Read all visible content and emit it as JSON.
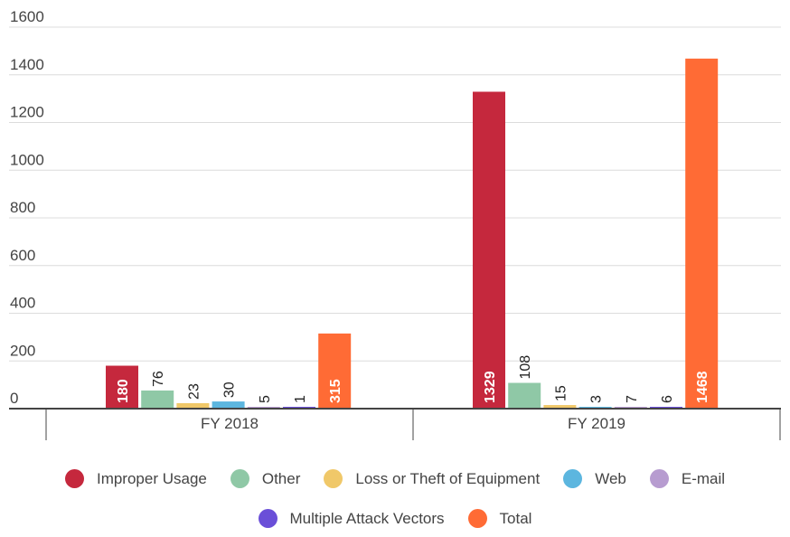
{
  "chart_data": {
    "type": "bar",
    "categories": [
      "FY 2018",
      "FY 2019"
    ],
    "series": [
      {
        "name": "Improper Usage",
        "color": "#c5283d",
        "values": [
          180,
          1329
        ]
      },
      {
        "name": "Other",
        "color": "#8fc8a6",
        "values": [
          76,
          108
        ]
      },
      {
        "name": "Loss or Theft of Equipment",
        "color": "#f0c869",
        "values": [
          23,
          15
        ]
      },
      {
        "name": "Web",
        "color": "#5cb6df",
        "values": [
          30,
          3
        ]
      },
      {
        "name": "E-mail",
        "color": "#b79cd0",
        "values": [
          5,
          7
        ]
      },
      {
        "name": "Multiple Attack Vectors",
        "color": "#6a4fd8",
        "values": [
          1,
          6
        ]
      },
      {
        "name": "Total",
        "color": "#ff6b35",
        "values": [
          315,
          1468
        ]
      }
    ],
    "y_ticks": [
      0,
      200,
      400,
      600,
      800,
      1000,
      1200,
      1400,
      1600
    ],
    "ylim": [
      0,
      1600
    ],
    "grid": true,
    "legend": "bottom",
    "title": "",
    "xlabel": "",
    "ylabel": ""
  }
}
